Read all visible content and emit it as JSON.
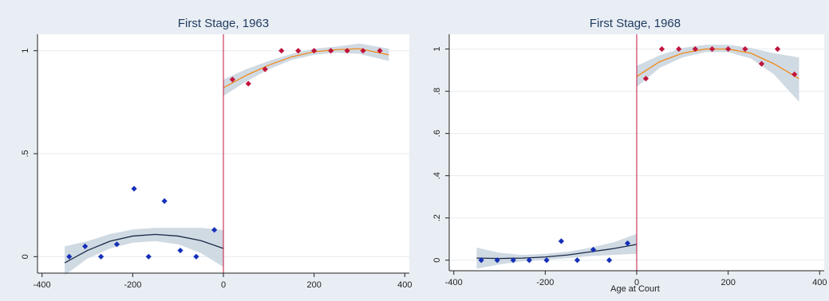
{
  "colors": {
    "background": "#e8eef4",
    "plot_area": "#ffffff",
    "grid": "#e6ebf0",
    "ci_band": "#cbd6e0",
    "left_points": "#1530b8",
    "right_points": "#c0143c",
    "left_fit": "#1a2a48",
    "right_fit": "#f08a1a",
    "cutoff": "#c0143c",
    "title": "#1f3a5f"
  },
  "chart_data": [
    {
      "type": "scatter",
      "title": "First Stage, 1963",
      "xlabel": "",
      "ylabel": "",
      "xlim": [
        -410,
        410
      ],
      "ylim": [
        -0.08,
        1.08
      ],
      "xticks": [
        -400,
        -200,
        0,
        200,
        400
      ],
      "xtick_labels": [
        "-400",
        "-200",
        "0",
        "200",
        "400"
      ],
      "yticks": [
        0,
        0.5,
        1
      ],
      "ytick_labels": [
        "0",
        ".5",
        "1"
      ],
      "grid": true,
      "cutoff_x": 0,
      "series": [
        {
          "side": "left",
          "marker": "diamond",
          "x": [
            -340,
            -305,
            -270,
            -235,
            -197,
            -165,
            -130,
            -95,
            -60,
            -20
          ],
          "y": [
            0,
            0.05,
            0,
            0.06,
            0.33,
            0,
            0.27,
            0.03,
            0,
            0.13
          ]
        },
        {
          "side": "right",
          "marker": "diamond",
          "x": [
            20,
            55,
            92,
            128,
            165,
            200,
            237,
            273,
            308,
            345
          ],
          "y": [
            0.86,
            0.84,
            0.91,
            1.0,
            1.0,
            1.0,
            1.0,
            1.0,
            1.0,
            1.0
          ]
        }
      ],
      "fits": [
        {
          "side": "left",
          "x": [
            -350,
            -300,
            -250,
            -200,
            -150,
            -100,
            -50,
            0
          ],
          "y": [
            -0.03,
            0.03,
            0.075,
            0.1,
            0.108,
            0.1,
            0.078,
            0.04
          ],
          "lower": [
            -0.09,
            -0.01,
            0.04,
            0.068,
            0.075,
            0.06,
            0.018,
            -0.05
          ],
          "upper": [
            0.05,
            0.075,
            0.11,
            0.132,
            0.14,
            0.14,
            0.14,
            0.13
          ]
        },
        {
          "side": "right",
          "x": [
            0,
            50,
            100,
            150,
            200,
            250,
            300,
            365
          ],
          "y": [
            0.82,
            0.88,
            0.93,
            0.97,
            0.995,
            1.005,
            1.01,
            0.98
          ],
          "lower": [
            0.78,
            0.85,
            0.91,
            0.955,
            0.98,
            0.99,
            0.985,
            0.95
          ],
          "upper": [
            0.86,
            0.91,
            0.95,
            0.985,
            1.01,
            1.02,
            1.035,
            1.01
          ]
        }
      ]
    },
    {
      "type": "scatter",
      "title": "First Stage, 1968",
      "xlabel": "Age at Court",
      "ylabel": "",
      "xlim": [
        -410,
        410
      ],
      "ylim": [
        -0.05,
        1.07
      ],
      "xticks": [
        -400,
        -200,
        0,
        200,
        400
      ],
      "xtick_labels": [
        "-400",
        "-200",
        "0",
        "200",
        "400"
      ],
      "yticks": [
        0,
        0.2,
        0.4,
        0.6,
        0.8,
        1
      ],
      "ytick_labels": [
        "0",
        ".2",
        ".4",
        ".6",
        ".8",
        "1"
      ],
      "grid": true,
      "cutoff_x": 0,
      "series": [
        {
          "side": "left",
          "marker": "diamond",
          "x": [
            -340,
            -305,
            -270,
            -235,
            -197,
            -165,
            -130,
            -95,
            -60,
            -20
          ],
          "y": [
            0,
            0,
            0,
            0,
            0,
            0.09,
            0,
            0.05,
            0,
            0.08
          ]
        },
        {
          "side": "right",
          "marker": "diamond",
          "x": [
            20,
            55,
            92,
            128,
            165,
            200,
            237,
            273,
            308,
            345
          ],
          "y": [
            0.86,
            1.0,
            1.0,
            1.0,
            1.0,
            1.0,
            1.0,
            0.93,
            1.0,
            0.88
          ]
        }
      ],
      "fits": [
        {
          "side": "left",
          "x": [
            -350,
            -300,
            -250,
            -200,
            -150,
            -100,
            -50,
            0
          ],
          "y": [
            0.01,
            0.008,
            0.01,
            0.015,
            0.025,
            0.04,
            0.055,
            0.075
          ],
          "lower": [
            -0.04,
            -0.02,
            -0.005,
            0.002,
            0.01,
            0.02,
            0.025,
            0.03
          ],
          "upper": [
            0.06,
            0.035,
            0.025,
            0.03,
            0.04,
            0.06,
            0.085,
            0.125
          ]
        },
        {
          "side": "right",
          "x": [
            0,
            50,
            100,
            150,
            200,
            250,
            300,
            355
          ],
          "y": [
            0.87,
            0.94,
            0.98,
            1.0,
            1.0,
            0.98,
            0.93,
            0.86
          ],
          "lower": [
            0.82,
            0.91,
            0.96,
            0.985,
            0.985,
            0.955,
            0.88,
            0.75
          ],
          "upper": [
            0.92,
            0.97,
            1.005,
            1.02,
            1.02,
            1.005,
            0.98,
            0.96
          ]
        }
      ]
    }
  ]
}
